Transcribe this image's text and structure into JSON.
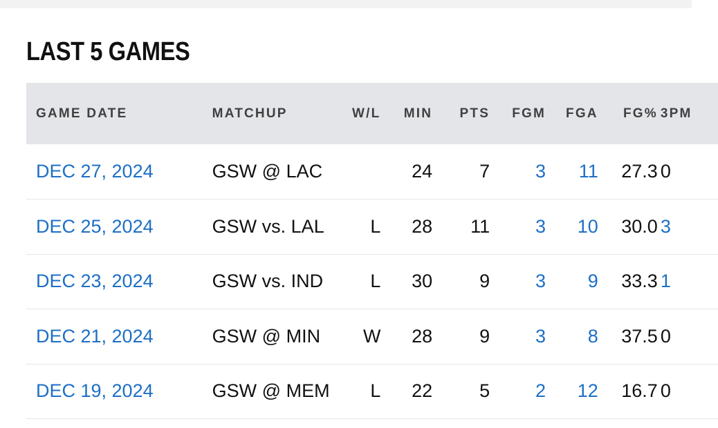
{
  "section": {
    "title": "LAST 5 GAMES"
  },
  "table": {
    "headers": [
      "GAME DATE",
      "MATCHUP",
      "W/L",
      "MIN",
      "PTS",
      "FGM",
      "FGA",
      "FG%",
      "3PM"
    ],
    "rows": [
      {
        "date": "DEC 27, 2024",
        "matchup": "GSW @ LAC",
        "wl": "",
        "min": "24",
        "pts": "7",
        "fgm": "3",
        "fga": "11",
        "fgp": "27.3",
        "tpm": "0"
      },
      {
        "date": "DEC 25, 2024",
        "matchup": "GSW vs. LAL",
        "wl": "L",
        "min": "28",
        "pts": "11",
        "fgm": "3",
        "fga": "10",
        "fgp": "30.0",
        "tpm": "3"
      },
      {
        "date": "DEC 23, 2024",
        "matchup": "GSW vs. IND",
        "wl": "L",
        "min": "30",
        "pts": "9",
        "fgm": "3",
        "fga": "9",
        "fgp": "33.3",
        "tpm": "1"
      },
      {
        "date": "DEC 21, 2024",
        "matchup": "GSW @ MIN",
        "wl": "W",
        "min": "28",
        "pts": "9",
        "fgm": "3",
        "fga": "8",
        "fgp": "37.5",
        "tpm": "0"
      },
      {
        "date": "DEC 19, 2024",
        "matchup": "GSW @ MEM",
        "wl": "L",
        "min": "22",
        "pts": "5",
        "fgm": "2",
        "fga": "12",
        "fgp": "16.7",
        "tpm": "0"
      }
    ]
  },
  "colors": {
    "link": "#1d6fc5",
    "header_bg": "#e4e5e9",
    "text": "#111111"
  }
}
